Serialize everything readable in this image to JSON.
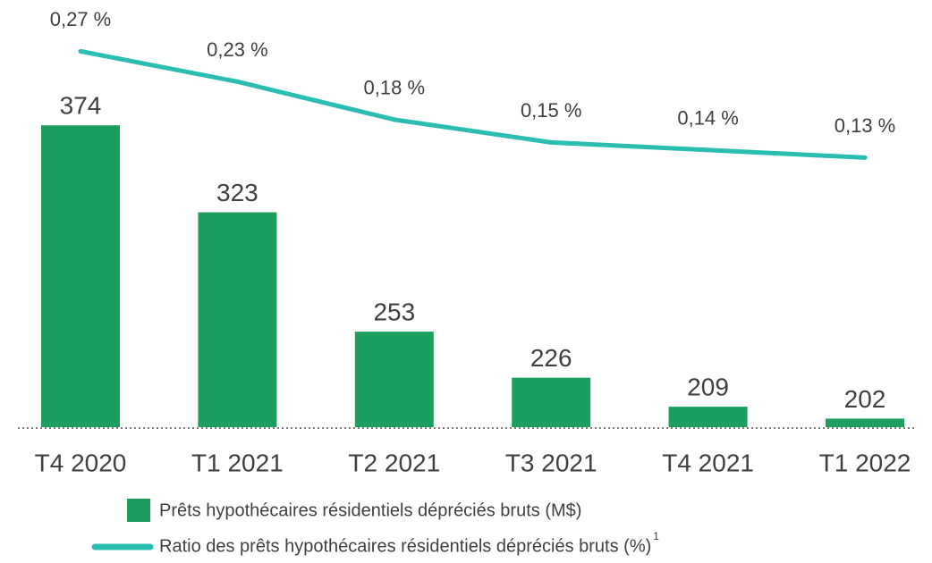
{
  "chart_data": {
    "type": "bar+line",
    "categories": [
      "T4 2020",
      "T1 2021",
      "T2 2021",
      "T3 2021",
      "T4 2021",
      "T1 2022"
    ],
    "series": [
      {
        "name": "Prêts hypothécaires résidentiels dépréciés bruts (M$)",
        "type": "bar",
        "color": "#1c9e5e",
        "values": [
          374,
          323,
          253,
          226,
          209,
          202
        ]
      },
      {
        "name": "Ratio des prêts hypothécaires résidentiels dépréciés bruts (%)",
        "note": "1",
        "type": "line",
        "axis": "y2",
        "color": "#2bbdb1",
        "values": [
          0.27,
          0.23,
          0.18,
          0.15,
          0.14,
          0.13
        ],
        "value_labels": [
          "0,27 %",
          "0,23 %",
          "0,18 %",
          "0,15 %",
          "0,14 %",
          "0,13 %"
        ]
      }
    ],
    "ylim": [
      197,
      437
    ],
    "y2lim": [
      -0.225,
      0.314
    ],
    "legend": "bottom"
  }
}
